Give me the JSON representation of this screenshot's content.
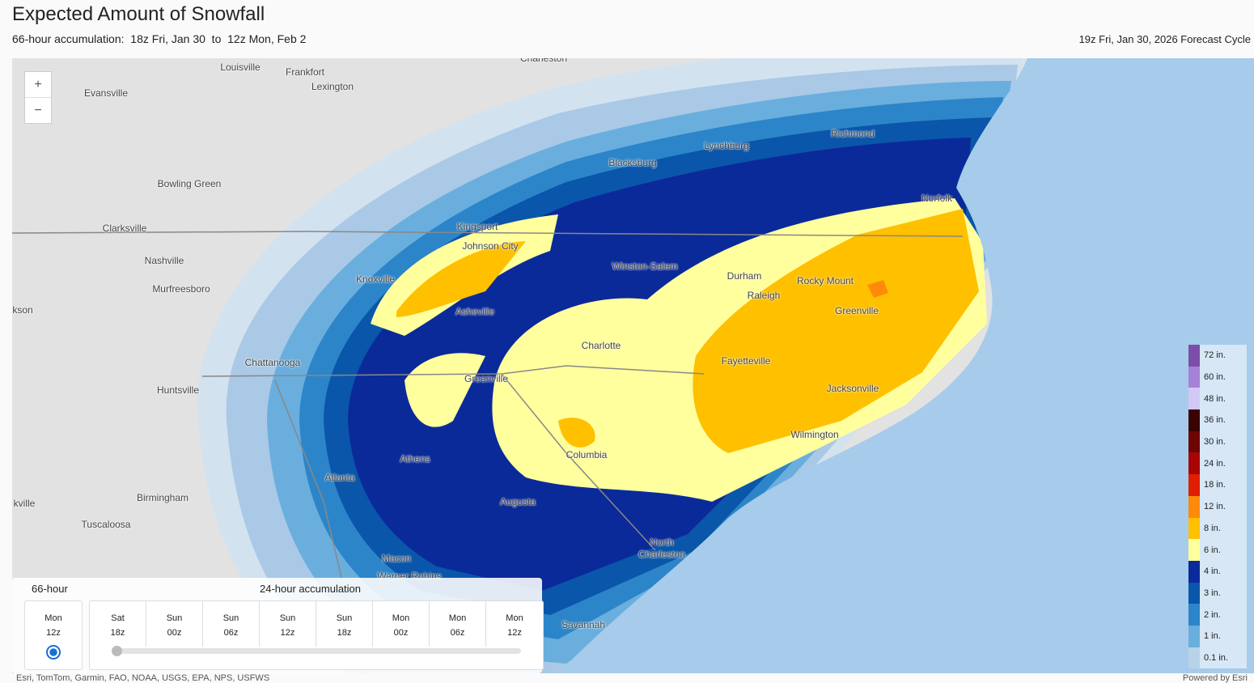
{
  "header": {
    "title": "Expected Amount of Snowfall",
    "subtitle": "66-hour accumulation:  18z Fri, Jan 30  to  12z Mon, Feb 2",
    "cycle": "19z Fri, Jan 30, 2026 Forecast Cycle"
  },
  "map": {
    "zoom_in": "+",
    "zoom_out": "−",
    "places": [
      "Louisville",
      "Frankfort",
      "Lexington",
      "Charleston",
      "Evansville",
      "Bowling Green",
      "Clarksville",
      "Nashville",
      "Murfreesboro",
      "kson",
      "Chattanooga",
      "Huntsville",
      "Birmingham",
      "Tuscaloosa",
      "kville",
      "Blacksburg",
      "Lynchburg",
      "Richmond",
      "Norfolk",
      "Kingsport",
      "Johnson City",
      "Knoxville",
      "Asheville",
      "Winston-Salem",
      "Durham",
      "Raleigh",
      "Rocky Mount",
      "Greenville",
      "Charlotte",
      "Fayetteville",
      "Greenville",
      "Jacksonville",
      "Wilmington",
      "Columbia",
      "Athens",
      "Atlanta",
      "Augusta",
      "North Charleston",
      "Macon",
      "Warner Robins",
      "Savannah"
    ],
    "attribution": "Esri, TomTom, Garmin, FAO, NOAA, USGS, EPA, NPS, USFWS",
    "powered_by": "Powered by Esri"
  },
  "legend": {
    "items": [
      {
        "label": "72 in.",
        "color": "#7b4fa8"
      },
      {
        "label": "60 in.",
        "color": "#a483d6"
      },
      {
        "label": "48 in.",
        "color": "#d2c8f6"
      },
      {
        "label": "36 in.",
        "color": "#3a0303"
      },
      {
        "label": "30 in.",
        "color": "#6e0505"
      },
      {
        "label": "24 in.",
        "color": "#a80404"
      },
      {
        "label": "18 in.",
        "color": "#e01e00"
      },
      {
        "label": "12 in.",
        "color": "#ff8a0a"
      },
      {
        "label": "8 in.",
        "color": "#ffc000"
      },
      {
        "label": "6 in.",
        "color": "#ffff9e"
      },
      {
        "label": "4 in.",
        "color": "#0a2a9a"
      },
      {
        "label": "3 in.",
        "color": "#0a56aa"
      },
      {
        "label": "2 in.",
        "color": "#2c85c8"
      },
      {
        "label": "1 in.",
        "color": "#6aaede"
      },
      {
        "label": "0.1 in.",
        "color": "#b8d3e8"
      }
    ]
  },
  "timeline": {
    "total_label": "66-hour",
    "total_slot": {
      "day": "Mon",
      "hour": "12z"
    },
    "step_label": "24-hour accumulation",
    "slots": [
      {
        "day": "Sat",
        "hour": "18z"
      },
      {
        "day": "Sun",
        "hour": "00z"
      },
      {
        "day": "Sun",
        "hour": "06z"
      },
      {
        "day": "Sun",
        "hour": "12z"
      },
      {
        "day": "Sun",
        "hour": "18z"
      },
      {
        "day": "Mon",
        "hour": "00z"
      },
      {
        "day": "Mon",
        "hour": "06z"
      },
      {
        "day": "Mon",
        "hour": "12z"
      }
    ]
  }
}
